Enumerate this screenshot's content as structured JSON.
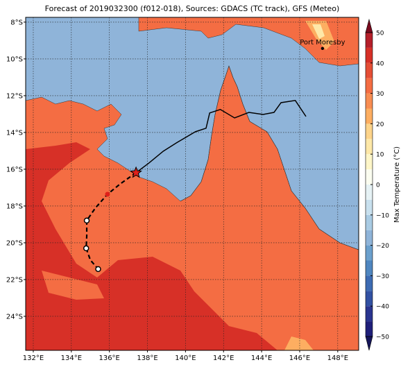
{
  "title": "Forecast of 2019032300 (f012-018), Sources: GDACS (TC track), GFS (Meteo)",
  "map": {
    "xlim": [
      131.6,
      149.1
    ],
    "ylim": [
      -25.85,
      -7.74
    ],
    "grid": true,
    "xticks": [
      {
        "value": 132,
        "label": "132°E"
      },
      {
        "value": 134,
        "label": "134°E"
      },
      {
        "value": 136,
        "label": "136°E"
      },
      {
        "value": 138,
        "label": "138°E"
      },
      {
        "value": 140,
        "label": "140°E"
      },
      {
        "value": 142,
        "label": "142°E"
      },
      {
        "value": 144,
        "label": "144°E"
      },
      {
        "value": 146,
        "label": "146°E"
      },
      {
        "value": 148,
        "label": "148°E"
      }
    ],
    "yticks": [
      {
        "value": -8,
        "label": "8°S"
      },
      {
        "value": -10,
        "label": "10°S"
      },
      {
        "value": -12,
        "label": "12°S"
      },
      {
        "value": -14,
        "label": "14°S"
      },
      {
        "value": -16,
        "label": "16°S"
      },
      {
        "value": -18,
        "label": "18°S"
      },
      {
        "value": -20,
        "label": "20°S"
      },
      {
        "value": -22,
        "label": "22°S"
      },
      {
        "value": -24,
        "label": "24°S"
      }
    ],
    "observed_track": {
      "color": "#000000",
      "lon": [
        137.4,
        138.08,
        138.83,
        139.58,
        140.52,
        141.08,
        141.27,
        141.83,
        142.58,
        143.33,
        144.08,
        144.65,
        145.02,
        145.77,
        146.33
      ],
      "lat": [
        -16.19,
        -15.66,
        -15.02,
        -14.53,
        -13.96,
        -13.77,
        -12.94,
        -12.75,
        -13.21,
        -12.91,
        -13.02,
        -12.91,
        -12.38,
        -12.26,
        -13.13
      ]
    },
    "forecast_track": {
      "color": "#000000",
      "lon": [
        137.4,
        136.58,
        135.9,
        135.26,
        134.81,
        134.81,
        134.78,
        135.0,
        135.41
      ],
      "lat": [
        -16.19,
        -16.79,
        -17.36,
        -18.11,
        -18.79,
        -19.62,
        -20.3,
        -20.94,
        -21.43
      ]
    },
    "markers": [
      {
        "symbol": "star",
        "color": "#e0201a",
        "lon": 137.4,
        "lat": -16.19
      },
      {
        "symbol": "dot",
        "color": "#e0201a",
        "lon": 135.9,
        "lat": -17.36
      },
      {
        "symbol": "circle",
        "color": "#ffffff",
        "lon": 134.81,
        "lat": -18.79
      },
      {
        "symbol": "circle",
        "color": "#ffffff",
        "lon": 134.78,
        "lat": -20.3
      },
      {
        "symbol": "circle",
        "color": "#ffffff",
        "lon": 135.41,
        "lat": -21.43
      }
    ],
    "places": [
      {
        "name": "Port Moresby",
        "lon": 147.2,
        "lat": -9.43
      }
    ]
  },
  "colorbar": {
    "label": "Max Temperature (°C)",
    "lim": [
      -50,
      50
    ],
    "ticks": [
      {
        "value": -50,
        "label": "−50"
      },
      {
        "value": -40,
        "label": "−40"
      },
      {
        "value": -30,
        "label": "−30"
      },
      {
        "value": -20,
        "label": "−20"
      },
      {
        "value": -10,
        "label": "−10"
      },
      0,
      10,
      20,
      30,
      40,
      50
    ],
    "colors": [
      "#1f1f7a",
      "#2a3590",
      "#3251a3",
      "#3d6bb3",
      "#4f86c0",
      "#6ba0cd",
      "#8fb4d9",
      "#a9cbe3",
      "#c8e0ee",
      "#e6f2f5",
      "#fbfdf0",
      "#fef6c8",
      "#fee8a8",
      "#fdd48a",
      "#fdae61",
      "#f88d52",
      "#f46d43",
      "#e54e35",
      "#d73027",
      "#b51f2a"
    ],
    "under_color": "#15155a",
    "over_color": "#7a0a1e"
  }
}
